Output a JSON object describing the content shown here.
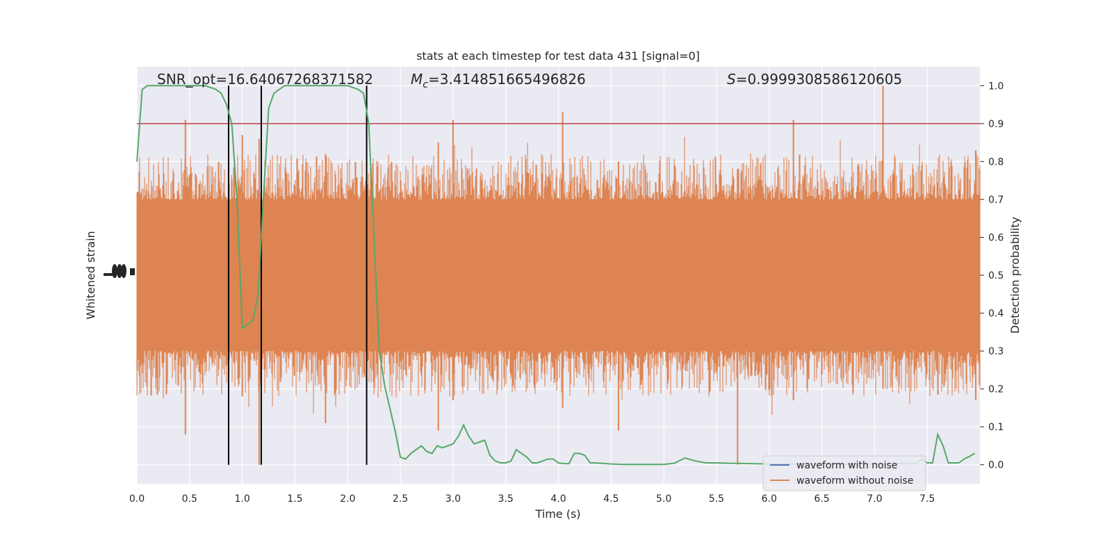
{
  "chart_data": {
    "type": "line",
    "title": "stats at each timestep for test data 431 [signal=0]",
    "xlabel": "Time (s)",
    "ylabel_left": "Whitened strain",
    "ylabel_right": "Detection probability",
    "xlim": [
      0,
      8
    ],
    "ylim_right": [
      -0.05,
      1.05
    ],
    "x_ticks": [
      "0.0",
      "0.5",
      "1.0",
      "1.5",
      "2.0",
      "2.5",
      "3.0",
      "3.5",
      "4.0",
      "4.5",
      "5.0",
      "5.5",
      "6.0",
      "6.5",
      "7.0",
      "7.5"
    ],
    "y_ticks_right": [
      "0.0",
      "0.1",
      "0.2",
      "0.3",
      "0.4",
      "0.5",
      "0.6",
      "0.7",
      "0.8",
      "0.9",
      "1.0"
    ],
    "grid": true,
    "legend_position": "lower-right",
    "annotations": {
      "snr": "SNR_opt=16.64067268371582",
      "mc_symbol": "M",
      "mc_sub": "c",
      "mc_value": "=3.414851665496826",
      "s_symbol": "S",
      "s_value": "=0.9999308586120605"
    },
    "threshold": 0.9,
    "vertical_lines_x": [
      0.87,
      1.18,
      2.18
    ],
    "series": [
      {
        "name": "waveform with noise",
        "color": "#4c72b0",
        "x": [],
        "y": []
      },
      {
        "name": "waveform without noise",
        "color": "#dd8452",
        "envelope": "dense strain trace, mostly spanning 0.30–0.70 of the probability axis",
        "spikes": [
          {
            "x": 0.46,
            "lo": 0.08,
            "hi": 0.91
          },
          {
            "x": 1.0,
            "lo": 0.18,
            "hi": 0.87
          },
          {
            "x": 1.16,
            "lo": 0.0,
            "hi": 0.86
          },
          {
            "x": 1.79,
            "lo": 0.11,
            "hi": 0.82
          },
          {
            "x": 2.86,
            "lo": 0.09,
            "hi": 0.85
          },
          {
            "x": 3.0,
            "lo": 0.17,
            "hi": 0.91
          },
          {
            "x": 4.04,
            "lo": 0.15,
            "hi": 0.93
          },
          {
            "x": 4.57,
            "lo": 0.09,
            "hi": 0.8
          },
          {
            "x": 5.7,
            "lo": 0.0,
            "hi": 0.78
          },
          {
            "x": 6.23,
            "lo": 0.17,
            "hi": 0.91
          },
          {
            "x": 7.08,
            "lo": 0.2,
            "hi": 1.0
          },
          {
            "x": 7.96,
            "lo": 0.17,
            "hi": 0.83
          }
        ]
      },
      {
        "name": "detection probability",
        "color": "#55a868",
        "x": [
          0,
          0.05,
          0.1,
          0.2,
          0.3,
          0.4,
          0.5,
          0.6,
          0.65,
          0.7,
          0.75,
          0.8,
          0.85,
          0.9,
          0.95,
          1.0,
          1.05,
          1.1,
          1.15,
          1.2,
          1.25,
          1.3,
          1.4,
          1.5,
          1.6,
          1.7,
          1.8,
          1.9,
          2.0,
          2.05,
          2.1,
          2.15,
          2.2,
          2.25,
          2.3,
          2.35,
          2.4,
          2.45,
          2.5,
          2.55,
          2.6,
          2.7,
          2.75,
          2.8,
          2.85,
          2.9,
          2.95,
          3.0,
          3.05,
          3.1,
          3.15,
          3.2,
          3.25,
          3.3,
          3.35,
          3.4,
          3.45,
          3.5,
          3.55,
          3.6,
          3.65,
          3.7,
          3.75,
          3.8,
          3.85,
          3.9,
          3.95,
          4.0,
          4.05,
          4.1,
          4.15,
          4.2,
          4.25,
          4.3,
          4.35,
          4.4,
          4.5,
          4.6,
          4.8,
          5.0,
          5.1,
          5.2,
          5.3,
          5.4,
          5.5,
          5.6,
          6.0,
          6.5,
          7.0,
          7.4,
          7.45,
          7.5,
          7.55,
          7.6,
          7.65,
          7.7,
          7.75,
          7.8,
          7.85,
          7.9,
          7.95
        ],
        "y": [
          0.8,
          0.99,
          1.0,
          1.0,
          1.0,
          1.0,
          1.0,
          1.0,
          1.0,
          0.995,
          0.99,
          0.98,
          0.95,
          0.9,
          0.7,
          0.36,
          0.37,
          0.38,
          0.45,
          0.7,
          0.94,
          0.98,
          1.0,
          1.0,
          1.0,
          1.0,
          1.0,
          1.0,
          1.0,
          0.995,
          0.99,
          0.98,
          0.9,
          0.6,
          0.3,
          0.21,
          0.15,
          0.09,
          0.02,
          0.015,
          0.03,
          0.05,
          0.035,
          0.03,
          0.05,
          0.045,
          0.05,
          0.055,
          0.075,
          0.105,
          0.075,
          0.055,
          0.06,
          0.065,
          0.025,
          0.01,
          0.005,
          0.005,
          0.01,
          0.04,
          0.03,
          0.02,
          0.005,
          0.005,
          0.01,
          0.015,
          0.015,
          0.005,
          0.003,
          0.003,
          0.03,
          0.03,
          0.025,
          0.005,
          0.005,
          0.004,
          0.002,
          0.001,
          0.001,
          0.001,
          0.004,
          0.018,
          0.01,
          0.005,
          0.005,
          0.004,
          0.002,
          0.002,
          0.002,
          0.004,
          0.015,
          0.005,
          0.005,
          0.08,
          0.05,
          0.005,
          0.005,
          0.005,
          0.015,
          0.022,
          0.03
        ]
      }
    ]
  }
}
